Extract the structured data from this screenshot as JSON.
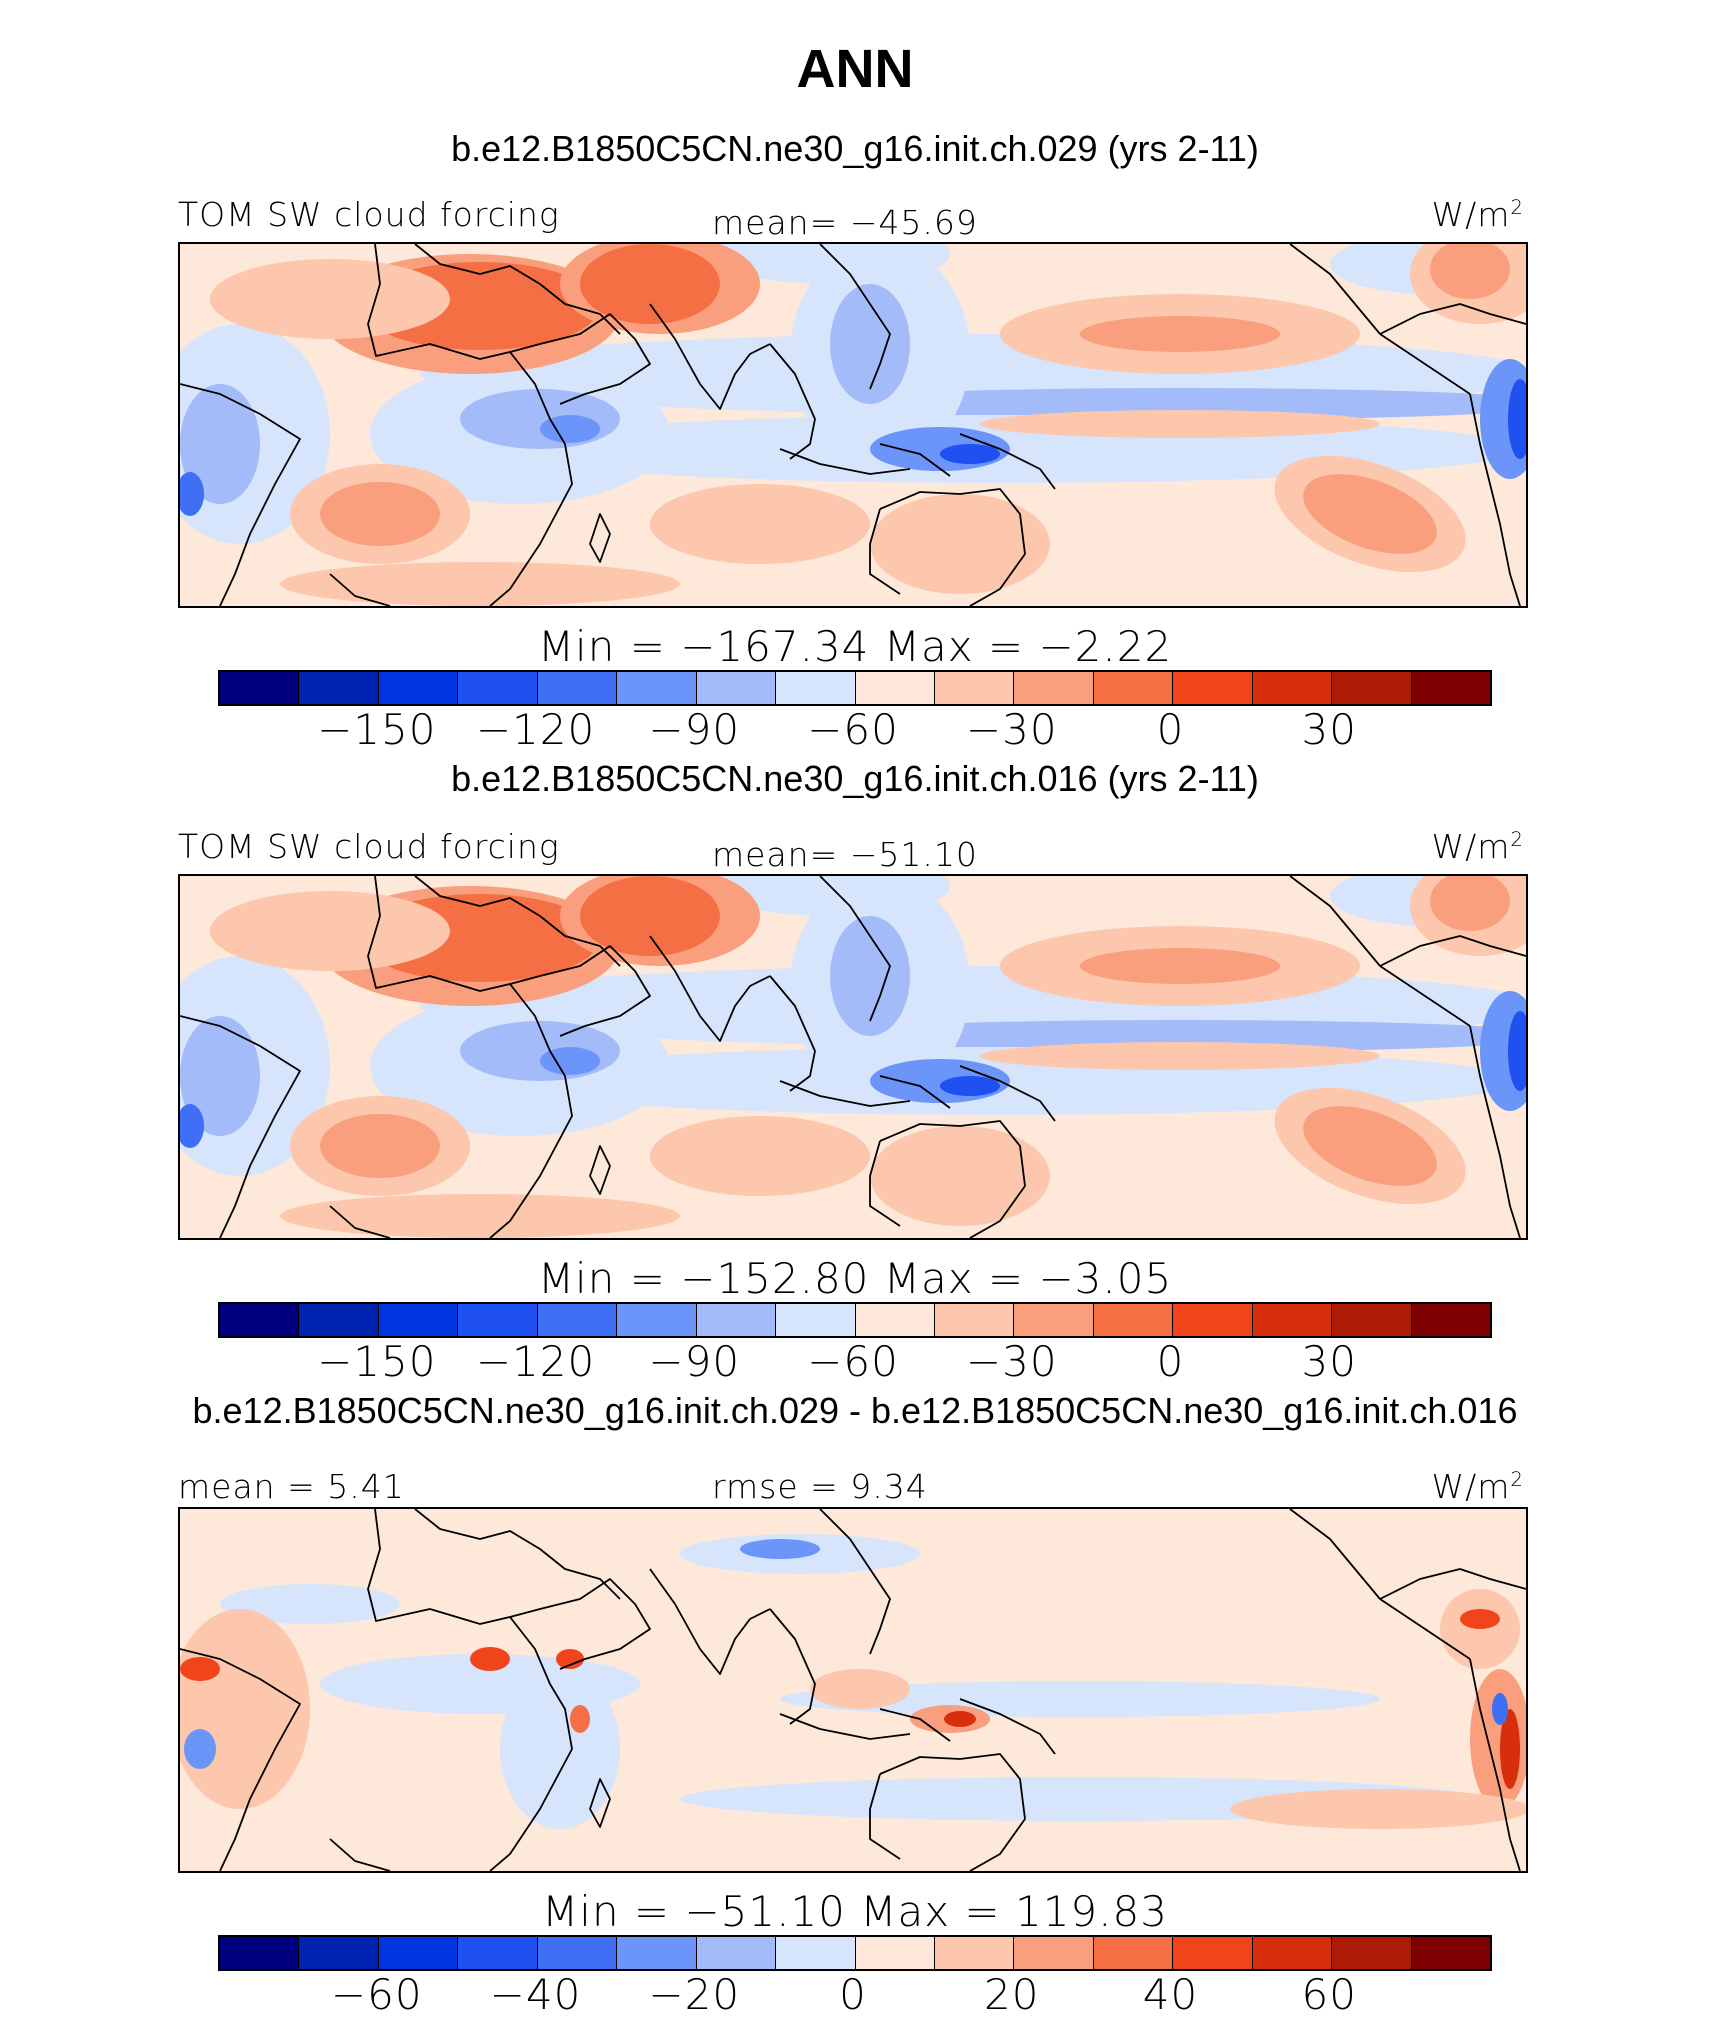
{
  "title": "ANN",
  "units": "W/m",
  "units_sup": "2",
  "colormap": [
    "#00007f",
    "#0022b0",
    "#0036e0",
    "#1f50f0",
    "#3f6ff5",
    "#6b95f8",
    "#a3bcf9",
    "#d6e5fb",
    "#fde8d9",
    "#fcc7ad",
    "#f99f7d",
    "#f46f43",
    "#f0441a",
    "#d72f0c",
    "#ad1a05",
    "#7f0000"
  ],
  "panels": [
    {
      "run_title": "b.e12.B1850C5CN.ne30_g16.init.ch.029 (yrs 2-11)",
      "label_left": "TOM SW cloud forcing",
      "label_mid": "mean= −45.69",
      "minmax": "Min  =  −167.34  Max  =   −2.22",
      "ticks": [
        "−150",
        "−120",
        "−90",
        "−60",
        "−30",
        "0",
        "30"
      ]
    },
    {
      "run_title": "b.e12.B1850C5CN.ne30_g16.init.ch.016 (yrs 2-11)",
      "label_left": "TOM SW cloud forcing",
      "label_mid": "mean= −51.10",
      "minmax": "Min  =  −152.80  Max  =   −3.05",
      "ticks": [
        "−150",
        "−120",
        "−90",
        "−60",
        "−30",
        "0",
        "30"
      ]
    },
    {
      "run_title": "b.e12.B1850C5CN.ne30_g16.init.ch.029 - b.e12.B1850C5CN.ne30_g16.init.ch.016",
      "label_left": "mean  =    5.41",
      "label_mid": "rmse  =     9.34",
      "minmax": "Min  =  −51.10  Max  =  119.83",
      "ticks": [
        "−60",
        "−40",
        "−20",
        "0",
        "20",
        "40",
        "60"
      ]
    }
  ],
  "chart_data": [
    {
      "type": "heatmap",
      "title": "b.e12.B1850C5CN.ne30_g16.init.ch.029 (yrs 2-11)",
      "variable": "TOM SW cloud forcing",
      "units": "W/m2",
      "mean": -45.69,
      "min": -167.34,
      "max": -2.22,
      "contour_levels": [
        -165,
        -150,
        -135,
        -120,
        -105,
        -90,
        -75,
        -60,
        -45,
        -30,
        -15,
        0,
        15,
        30,
        45
      ],
      "colorbar_ticks": [
        -150,
        -120,
        -90,
        -60,
        -30,
        0,
        30
      ]
    },
    {
      "type": "heatmap",
      "title": "b.e12.B1850C5CN.ne30_g16.init.ch.016 (yrs 2-11)",
      "variable": "TOM SW cloud forcing",
      "units": "W/m2",
      "mean": -51.1,
      "min": -152.8,
      "max": -3.05,
      "contour_levels": [
        -165,
        -150,
        -135,
        -120,
        -105,
        -90,
        -75,
        -60,
        -45,
        -30,
        -15,
        0,
        15,
        30,
        45
      ],
      "colorbar_ticks": [
        -150,
        -120,
        -90,
        -60,
        -30,
        0,
        30
      ]
    },
    {
      "type": "heatmap",
      "title": "b.e12.B1850C5CN.ne30_g16.init.ch.029 - b.e12.B1850C5CN.ne30_g16.init.ch.016",
      "units": "W/m2",
      "mean": 5.41,
      "rmse": 9.34,
      "min": -51.1,
      "max": 119.83,
      "contour_levels": [
        -70,
        -60,
        -50,
        -40,
        -30,
        -20,
        -10,
        0,
        10,
        20,
        30,
        40,
        50,
        60,
        70
      ],
      "colorbar_ticks": [
        -60,
        -40,
        -20,
        0,
        20,
        40,
        60
      ]
    }
  ]
}
